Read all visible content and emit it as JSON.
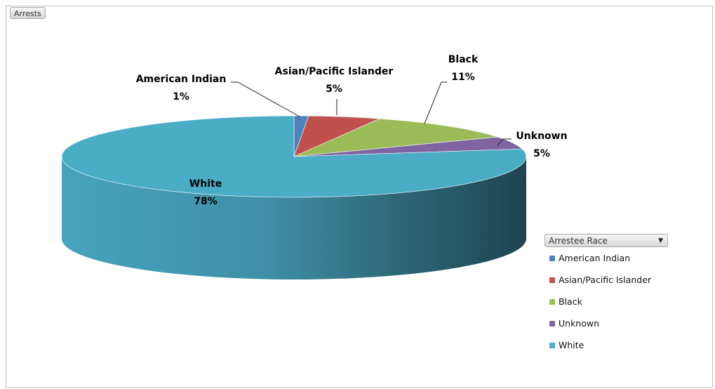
{
  "field_button": {
    "label": "Arrests"
  },
  "legend": {
    "title": "Arrestee Race",
    "dropdown_icon": "chevron-down-icon"
  },
  "chart_data": {
    "type": "pie",
    "style": "3d",
    "categories": [
      "American Indian",
      "Asian/Pacific Islander",
      "Black",
      "Unknown",
      "White"
    ],
    "values": [
      1,
      5,
      11,
      5,
      78
    ],
    "labels": [
      "1%",
      "5%",
      "11%",
      "5%",
      "78%"
    ],
    "colors": [
      "#4f81bd",
      "#c0504d",
      "#9bbb59",
      "#8064a2",
      "#4bacc6"
    ],
    "legend_position": "right",
    "title": ""
  }
}
